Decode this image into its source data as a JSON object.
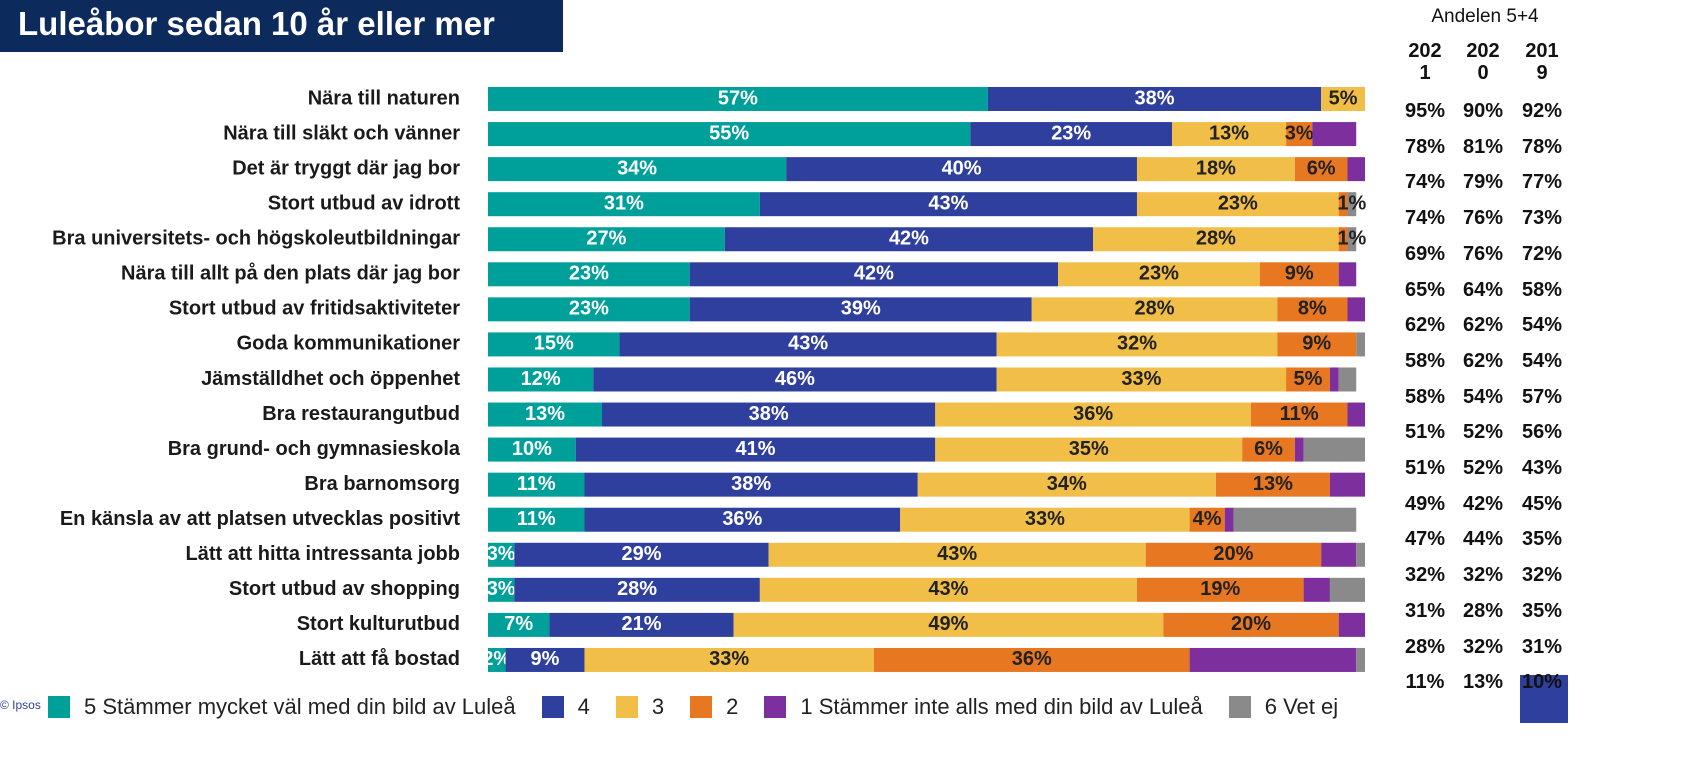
{
  "chart_data": {
    "type": "bar",
    "orientation": "horizontal",
    "stacked": true,
    "title": "Luleåbor sedan 10 år eller mer",
    "categories": [
      "Nära till naturen",
      "Nära till släkt och vänner",
      "Det är tryggt där jag bor",
      "Stort utbud av idrott",
      "Bra universitets- och högskoleutbildningar",
      "Nära till allt på den plats där jag bor",
      "Stort utbud av fritidsaktiviteter",
      "Goda kommunikationer",
      "Jämställdhet och öppenhet",
      "Bra restaurangutbud",
      "Bra grund- och gymnasieskola",
      "Bra barnomsorg",
      "En känsla av att platsen utvecklas positivt",
      "Lätt att hitta intressanta jobb",
      "Stort utbud av shopping",
      "Stort kulturutbud",
      "Lätt att få bostad"
    ],
    "xlim": [
      0,
      100
    ],
    "series": [
      {
        "name": "5 Stämmer mycket väl med din bild av Luleå",
        "color": "#00a09a",
        "values": [
          57,
          55,
          34,
          31,
          27,
          23,
          23,
          15,
          12,
          13,
          10,
          11,
          11,
          3,
          3,
          7,
          2
        ],
        "value_labels": [
          "57%",
          "55%",
          "34%",
          "31%",
          "27%",
          "23%",
          "23%",
          "15%",
          "12%",
          "13%",
          "10%",
          "11%",
          "11%",
          "3%",
          "3%",
          "7%",
          "2%"
        ]
      },
      {
        "name": "4",
        "color": "#2f3f9e",
        "values": [
          38,
          23,
          40,
          43,
          42,
          42,
          39,
          43,
          46,
          38,
          41,
          38,
          36,
          29,
          28,
          21,
          9
        ],
        "value_labels": [
          "38%",
          "23%",
          "40%",
          "43%",
          "42%",
          "42%",
          "39%",
          "43%",
          "46%",
          "38%",
          "41%",
          "38%",
          "36%",
          "29%",
          "28%",
          "21%",
          "9%"
        ]
      },
      {
        "name": "3",
        "color": "#f1be48",
        "values": [
          5,
          13,
          18,
          23,
          28,
          23,
          28,
          32,
          33,
          36,
          35,
          34,
          33,
          43,
          43,
          49,
          33
        ],
        "value_labels": [
          "5%",
          "13%",
          "18%",
          "23%",
          "28%",
          "23%",
          "28%",
          "32%",
          "33%",
          "36%",
          "35%",
          "34%",
          "33%",
          "43%",
          "43%",
          "49%",
          "33%"
        ]
      },
      {
        "name": "2",
        "color": "#e87722",
        "values": [
          0,
          3,
          6,
          1,
          1,
          9,
          8,
          9,
          5,
          11,
          6,
          13,
          4,
          20,
          19,
          20,
          36
        ],
        "value_labels": [
          null,
          "3%",
          "6%",
          null,
          null,
          "9%",
          "8%",
          "9%",
          "5%",
          "11%",
          "6%",
          "13%",
          "4%",
          "20%",
          "19%",
          "20%",
          "36%"
        ]
      },
      {
        "name": "1 Stämmer inte alls med din bild av Luleå",
        "color": "#7d2f9e",
        "values": [
          0,
          5,
          2,
          0,
          0,
          2,
          2,
          0,
          1,
          2,
          1,
          4,
          1,
          4,
          3,
          3,
          19
        ],
        "value_labels": [
          null,
          null,
          null,
          null,
          null,
          null,
          null,
          null,
          null,
          null,
          null,
          null,
          null,
          null,
          null,
          null,
          null
        ]
      },
      {
        "name": "6 Vet ej",
        "color": "#8a8a8a",
        "values": [
          0,
          0,
          0,
          1,
          1,
          0,
          0,
          1,
          2,
          0,
          7,
          0,
          14,
          1,
          4,
          0,
          1
        ],
        "value_labels": [
          null,
          null,
          null,
          "1%",
          "1%",
          null,
          null,
          null,
          null,
          null,
          null,
          null,
          null,
          null,
          null,
          null,
          null
        ]
      }
    ]
  },
  "table": {
    "title": "Andelen 5+4",
    "columns": [
      "2021",
      "2020",
      "2019"
    ],
    "rows": [
      [
        "95%",
        "90%",
        "92%"
      ],
      [
        "78%",
        "81%",
        "78%"
      ],
      [
        "74%",
        "79%",
        "77%"
      ],
      [
        "74%",
        "76%",
        "73%"
      ],
      [
        "69%",
        "76%",
        "72%"
      ],
      [
        "65%",
        "64%",
        "58%"
      ],
      [
        "62%",
        "62%",
        "54%"
      ],
      [
        "58%",
        "62%",
        "54%"
      ],
      [
        "58%",
        "54%",
        "57%"
      ],
      [
        "51%",
        "52%",
        "56%"
      ],
      [
        "51%",
        "52%",
        "43%"
      ],
      [
        "49%",
        "42%",
        "45%"
      ],
      [
        "47%",
        "44%",
        "35%"
      ],
      [
        "32%",
        "32%",
        "32%"
      ],
      [
        "31%",
        "28%",
        "35%"
      ],
      [
        "28%",
        "32%",
        "31%"
      ],
      [
        "11%",
        "13%",
        "10%"
      ]
    ]
  },
  "footer": "© Ipsos"
}
